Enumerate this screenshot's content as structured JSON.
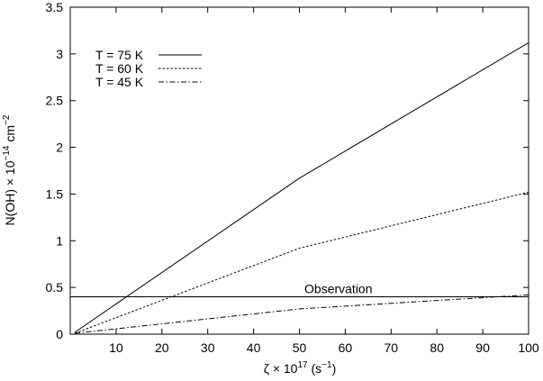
{
  "chart_data": {
    "type": "line",
    "xlabel": {
      "base": "ζ × 10",
      "exp": "17",
      "unit": " (s",
      "unit_exp": "−1",
      "unit_end": ")"
    },
    "ylabel": {
      "base": "N(OH) × 10",
      "exp": "−14",
      "unit": " cm",
      "unit_exp": "−2"
    },
    "xlim": [
      0,
      100
    ],
    "ylim": [
      0,
      3.5
    ],
    "xticks": [
      10,
      20,
      30,
      40,
      50,
      60,
      70,
      80,
      90,
      100
    ],
    "yticks": [
      0,
      0.5,
      1,
      1.5,
      2,
      2.5,
      3,
      3.5
    ],
    "xtick_labels": [
      "10",
      "20",
      "30",
      "40",
      "50",
      "60",
      "70",
      "80",
      "90",
      "100"
    ],
    "ytick_labels": [
      "0",
      "0.5",
      "1",
      "1.5",
      "2",
      "2.5",
      "3",
      "3.5"
    ],
    "legend_position": "top-left",
    "series": [
      {
        "name": "T = 75 K",
        "style": "solid",
        "x": [
          1,
          50,
          100
        ],
        "y": [
          0.02,
          1.67,
          3.12
        ]
      },
      {
        "name": "T = 60 K",
        "style": "dotted",
        "x": [
          1,
          50,
          100
        ],
        "y": [
          0.01,
          0.92,
          1.52
        ]
      },
      {
        "name": "T = 45 K",
        "style": "dashdot",
        "x": [
          1,
          50,
          100
        ],
        "y": [
          0.01,
          0.27,
          0.42
        ]
      }
    ],
    "hline": {
      "y": 0.4,
      "label": "Observation"
    }
  }
}
